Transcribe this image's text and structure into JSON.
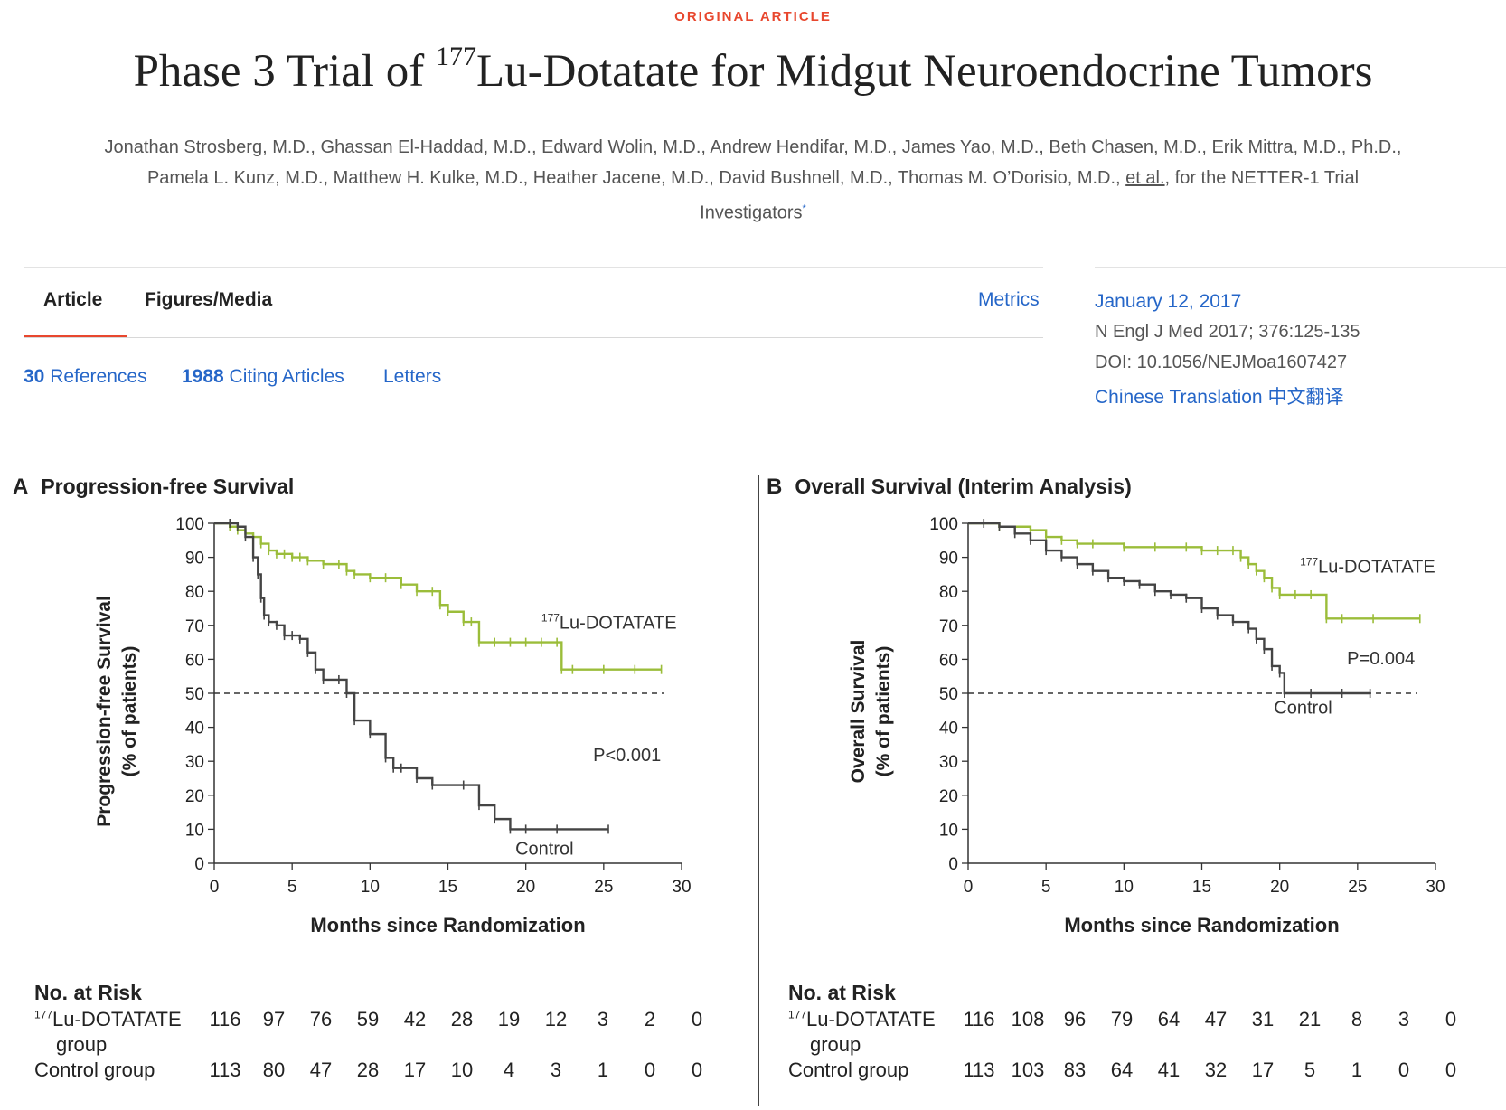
{
  "article": {
    "type_label": "ORIGINAL ARTICLE",
    "title_prefix": "Phase 3 Trial of ",
    "title_isotope": "177",
    "title_suffix": "Lu-Dotatate for Midgut Neuroendocrine Tumors",
    "authors_line1": "Jonathan Strosberg, M.D., Ghassan El-Haddad, M.D., Edward Wolin, M.D., Andrew Hendifar, M.D., James Yao, M.D., Beth Chasen, M.D., Erik Mittra, M.D., Ph.D.,",
    "authors_line2": "Pamela L. Kunz, M.D., Matthew H. Kulke, M.D., Heather Jacene, M.D., David Bushnell, M.D., Thomas M. O’Dorisio, M.D., ",
    "authors_etal": "et al.",
    "authors_line2b": ", for the NETTER-1 Trial",
    "authors_line3": "Investigators",
    "authors_mark": "*"
  },
  "tabs": {
    "article": "Article",
    "figures": "Figures/Media",
    "metrics": "Metrics"
  },
  "links": {
    "references_count": "30",
    "references_label": " References",
    "citing_count": "1988",
    "citing_label": " Citing Articles",
    "letters": "Letters"
  },
  "publication": {
    "date": "January 12, 2017",
    "citation": "N Engl J Med 2017; 376:125-135",
    "doi": "DOI: 10.1056/NEJMoa1607427",
    "translation": "Chinese Translation 中文翻译"
  },
  "colors": {
    "accent_red": "#e8472e",
    "link_blue": "#2566c8",
    "treatment_green": "#9bbd3a",
    "control_gray": "#444444"
  },
  "chart_data": [
    {
      "type": "line",
      "panel_letter": "A",
      "title": "Progression-free Survival",
      "xlabel": "Months since Randomization",
      "ylabel_line1": "Progression-free Survival",
      "ylabel_line2": "(% of patients)",
      "xlim": [
        0,
        30
      ],
      "ylim": [
        0,
        100
      ],
      "xticks": [
        0,
        5,
        10,
        15,
        20,
        25,
        30
      ],
      "yticks": [
        0,
        10,
        20,
        30,
        40,
        50,
        60,
        70,
        80,
        90,
        100
      ],
      "reference_line": 50,
      "p_value": "P<0.001",
      "series_label_prefix": "177",
      "series_label_suffix": "Lu-DOTATATE",
      "control_label": "Control",
      "series": [
        {
          "name": "177Lu-DOTATATE",
          "x": [
            0,
            1,
            1.5,
            2,
            2.5,
            3,
            3.5,
            4,
            4.5,
            5,
            5.5,
            6,
            7,
            8,
            8.5,
            9,
            10,
            11,
            12,
            13,
            14,
            14.5,
            15,
            16,
            16.5,
            17,
            18,
            19,
            20,
            21,
            22,
            22.3,
            23,
            25,
            27,
            28.7
          ],
          "y": [
            100,
            99,
            98,
            97,
            96,
            94,
            92,
            91,
            91,
            90,
            90,
            89,
            88,
            88,
            86,
            85,
            84,
            84,
            82,
            80,
            80,
            76,
            74,
            71,
            71,
            65,
            65,
            65,
            65,
            65,
            65,
            57,
            57,
            57,
            57,
            57
          ]
        },
        {
          "name": "Control",
          "x": [
            0,
            1,
            1.5,
            2,
            2.5,
            2.8,
            3,
            3.2,
            3.5,
            4,
            4.5,
            5,
            5.5,
            6,
            6.5,
            7,
            8,
            8.5,
            9,
            10,
            11,
            11.5,
            12,
            13,
            14,
            16,
            17,
            18,
            19,
            20,
            22,
            25.3
          ],
          "y": [
            100,
            100,
            99,
            96,
            90,
            85,
            78,
            73,
            71,
            70,
            67,
            67,
            66,
            62,
            57,
            54,
            54,
            50,
            42,
            38,
            31,
            28,
            28,
            25,
            23,
            23,
            17,
            13,
            10,
            10,
            10,
            10
          ]
        }
      ],
      "risk_table": {
        "title": "No. at Risk",
        "treatment_prefix": "177",
        "treatment_suffix": "Lu-DOTATATE",
        "treatment_line2": "group",
        "control_label": "Control group",
        "treatment_values": [
          "116",
          "97",
          "76",
          "59",
          "42",
          "28",
          "19",
          "12",
          "3",
          "2",
          "0"
        ],
        "control_values": [
          "113",
          "80",
          "47",
          "28",
          "17",
          "10",
          "4",
          "3",
          "1",
          "0",
          "0"
        ]
      }
    },
    {
      "type": "line",
      "panel_letter": "B",
      "title": "Overall Survival (Interim Analysis)",
      "xlabel": "Months since Randomization",
      "ylabel_line1": "Overall Survival",
      "ylabel_line2": "(% of patients)",
      "xlim": [
        0,
        30
      ],
      "ylim": [
        0,
        100
      ],
      "xticks": [
        0,
        5,
        10,
        15,
        20,
        25,
        30
      ],
      "yticks": [
        0,
        10,
        20,
        30,
        40,
        50,
        60,
        70,
        80,
        90,
        100
      ],
      "reference_line": 50,
      "p_value": "P=0.004",
      "series_label_prefix": "177",
      "series_label_suffix": "Lu-DOTATATE",
      "control_label": "Control",
      "series": [
        {
          "name": "177Lu-DOTATATE",
          "x": [
            0,
            2,
            4,
            5,
            6,
            7,
            8,
            10,
            12,
            14,
            15,
            16,
            17,
            17.5,
            18,
            18.5,
            19,
            19.5,
            20,
            21,
            22,
            23,
            24,
            26,
            29
          ],
          "y": [
            100,
            99,
            98,
            96,
            95,
            94,
            94,
            93,
            93,
            93,
            92,
            92,
            92,
            90,
            88,
            86,
            84,
            81,
            79,
            79,
            79,
            72,
            72,
            72,
            72
          ]
        },
        {
          "name": "Control",
          "x": [
            0,
            1,
            2,
            3,
            4,
            5,
            6,
            7,
            8,
            9,
            10,
            11,
            12,
            13,
            14,
            15,
            16,
            17,
            18,
            18.5,
            19,
            19.5,
            20,
            20.3,
            22,
            24,
            25.8
          ],
          "y": [
            100,
            100,
            99,
            97,
            95,
            92,
            90,
            88,
            86,
            84,
            83,
            82,
            80,
            79,
            78,
            75,
            73,
            71,
            69,
            66,
            63,
            58,
            56,
            50,
            50,
            50,
            50
          ]
        }
      ],
      "risk_table": {
        "title": "No. at Risk",
        "treatment_prefix": "177",
        "treatment_suffix": "Lu-DOTATATE",
        "treatment_line2": "group",
        "control_label": "Control group",
        "treatment_values": [
          "116",
          "108",
          "96",
          "79",
          "64",
          "47",
          "31",
          "21",
          "8",
          "3",
          "0"
        ],
        "control_values": [
          "113",
          "103",
          "83",
          "64",
          "41",
          "32",
          "17",
          "5",
          "1",
          "0",
          "0"
        ]
      }
    }
  ]
}
